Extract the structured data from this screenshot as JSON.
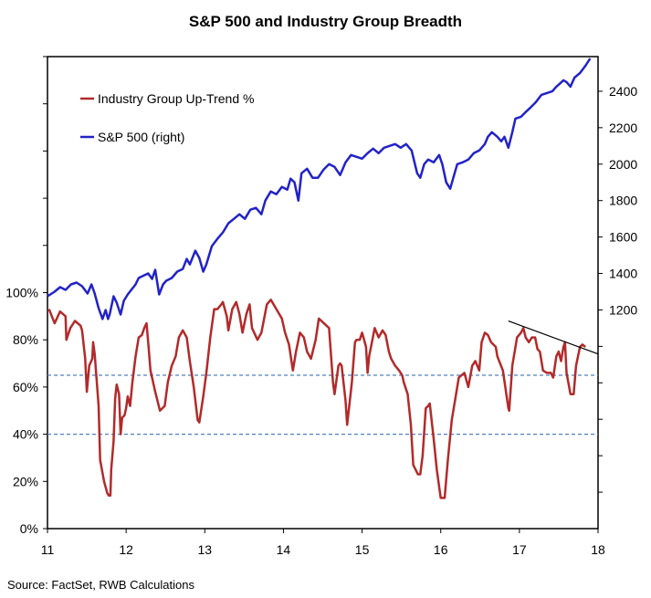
{
  "chart_data": {
    "type": "line",
    "title": "S&P 500 and Industry Group Breadth",
    "source": "Source: FactSet, RWB Calculations",
    "legend_position": "top-left",
    "grid": false,
    "x_ticks": [
      "11",
      "12",
      "13",
      "14",
      "15",
      "16",
      "17",
      "18"
    ],
    "xlim": [
      11,
      18
    ],
    "y_left": {
      "ylim": [
        0,
        200
      ],
      "ticks": [
        "0%",
        "20%",
        "40%",
        "60%",
        "80%",
        "100%"
      ],
      "tick_values": [
        0,
        20,
        40,
        60,
        80,
        100
      ],
      "minor_ticks": [
        120,
        140,
        160,
        180,
        200
      ]
    },
    "y_right": {
      "ylim": [
        0,
        2590
      ],
      "ticks": [
        "1200",
        "1400",
        "1600",
        "1800",
        "2000",
        "2200",
        "2400"
      ],
      "tick_values": [
        1200,
        1400,
        1600,
        1800,
        2000,
        2200,
        2400
      ],
      "minor_ticks": [
        200,
        400,
        600,
        800,
        1000
      ]
    },
    "reference_lines": [
      {
        "axis": "left",
        "value": 65,
        "style": "dashed",
        "color": "#4f81bd"
      },
      {
        "axis": "left",
        "value": 40,
        "style": "dashed",
        "color": "#4f81bd"
      }
    ],
    "trendline": {
      "axis": "left",
      "points": [
        [
          16.86,
          88
        ],
        [
          18.0,
          74
        ]
      ],
      "color": "#000000"
    },
    "series": [
      {
        "name": "Industry Group Up-Trend %",
        "axis": "left",
        "color": "#b22a2a",
        "points": [
          [
            11.02,
            93
          ],
          [
            11.09,
            87
          ],
          [
            11.16,
            92
          ],
          [
            11.23,
            90
          ],
          [
            11.24,
            80
          ],
          [
            11.29,
            85
          ],
          [
            11.35,
            88
          ],
          [
            11.42,
            86
          ],
          [
            11.44,
            84
          ],
          [
            11.48,
            72
          ],
          [
            11.5,
            58
          ],
          [
            11.53,
            69
          ],
          [
            11.57,
            72
          ],
          [
            11.58,
            79
          ],
          [
            11.6,
            74
          ],
          [
            11.65,
            52
          ],
          [
            11.67,
            29
          ],
          [
            11.72,
            20
          ],
          [
            11.76,
            15
          ],
          [
            11.78,
            14
          ],
          [
            11.8,
            14
          ],
          [
            11.81,
            25
          ],
          [
            11.84,
            37
          ],
          [
            11.86,
            55
          ],
          [
            11.88,
            61
          ],
          [
            11.91,
            57
          ],
          [
            11.93,
            40
          ],
          [
            11.95,
            47
          ],
          [
            11.98,
            48
          ],
          [
            12.0,
            51
          ],
          [
            12.02,
            56
          ],
          [
            12.05,
            52
          ],
          [
            12.08,
            62
          ],
          [
            12.12,
            73
          ],
          [
            12.16,
            81
          ],
          [
            12.2,
            82
          ],
          [
            12.23,
            85
          ],
          [
            12.26,
            87
          ],
          [
            12.28,
            79
          ],
          [
            12.31,
            67
          ],
          [
            12.37,
            58
          ],
          [
            12.43,
            50
          ],
          [
            12.49,
            52
          ],
          [
            12.53,
            62
          ],
          [
            12.58,
            69
          ],
          [
            12.63,
            73
          ],
          [
            12.67,
            81
          ],
          [
            12.72,
            84
          ],
          [
            12.77,
            81
          ],
          [
            12.81,
            71
          ],
          [
            12.86,
            60
          ],
          [
            12.91,
            46
          ],
          [
            12.93,
            45
          ],
          [
            12.98,
            56
          ],
          [
            13.02,
            66
          ],
          [
            13.07,
            81
          ],
          [
            13.12,
            93
          ],
          [
            13.16,
            93
          ],
          [
            13.21,
            95
          ],
          [
            13.23,
            96
          ],
          [
            13.28,
            90
          ],
          [
            13.3,
            84
          ],
          [
            13.35,
            93
          ],
          [
            13.4,
            96
          ],
          [
            13.44,
            91
          ],
          [
            13.48,
            83
          ],
          [
            13.53,
            91
          ],
          [
            13.57,
            95
          ],
          [
            13.6,
            85
          ],
          [
            13.67,
            80
          ],
          [
            13.72,
            83
          ],
          [
            13.79,
            95
          ],
          [
            13.84,
            97
          ],
          [
            13.91,
            93
          ],
          [
            13.98,
            89
          ],
          [
            14.02,
            83
          ],
          [
            14.07,
            78
          ],
          [
            14.12,
            67
          ],
          [
            14.16,
            75
          ],
          [
            14.21,
            83
          ],
          [
            14.26,
            81
          ],
          [
            14.3,
            75
          ],
          [
            14.35,
            72
          ],
          [
            14.41,
            80
          ],
          [
            14.45,
            89
          ],
          [
            14.58,
            85
          ],
          [
            14.63,
            62
          ],
          [
            14.65,
            57
          ],
          [
            14.7,
            69
          ],
          [
            14.72,
            70
          ],
          [
            14.74,
            69
          ],
          [
            14.79,
            54
          ],
          [
            14.81,
            44
          ],
          [
            14.87,
            62
          ],
          [
            14.91,
            79
          ],
          [
            14.93,
            80
          ],
          [
            14.97,
            80
          ],
          [
            15.0,
            83
          ],
          [
            15.05,
            77
          ],
          [
            15.07,
            66
          ],
          [
            15.09,
            73
          ],
          [
            15.16,
            85
          ],
          [
            15.21,
            81
          ],
          [
            15.26,
            84
          ],
          [
            15.3,
            82
          ],
          [
            15.34,
            75
          ],
          [
            15.37,
            72
          ],
          [
            15.42,
            69
          ],
          [
            15.47,
            67
          ],
          [
            15.51,
            65
          ],
          [
            15.53,
            62
          ],
          [
            15.58,
            57
          ],
          [
            15.62,
            44
          ],
          [
            15.65,
            27
          ],
          [
            15.71,
            23
          ],
          [
            15.74,
            23
          ],
          [
            15.77,
            31
          ],
          [
            15.81,
            51
          ],
          [
            15.84,
            52
          ],
          [
            15.86,
            53
          ],
          [
            15.91,
            38
          ],
          [
            15.95,
            25
          ],
          [
            16.0,
            13
          ],
          [
            16.05,
            13
          ],
          [
            16.09,
            29
          ],
          [
            16.14,
            46
          ],
          [
            16.19,
            56
          ],
          [
            16.23,
            64
          ],
          [
            16.3,
            66
          ],
          [
            16.35,
            60
          ],
          [
            16.4,
            69
          ],
          [
            16.44,
            71
          ],
          [
            16.49,
            67
          ],
          [
            16.52,
            79
          ],
          [
            16.56,
            83
          ],
          [
            16.6,
            82
          ],
          [
            16.64,
            79
          ],
          [
            16.7,
            77
          ],
          [
            16.72,
            73
          ],
          [
            16.79,
            67
          ],
          [
            16.86,
            51
          ],
          [
            16.87,
            50
          ],
          [
            16.91,
            69
          ],
          [
            16.97,
            81
          ],
          [
            17.02,
            83
          ],
          [
            17.05,
            85
          ],
          [
            17.08,
            81
          ],
          [
            17.12,
            79
          ],
          [
            17.16,
            81
          ],
          [
            17.2,
            81
          ],
          [
            17.23,
            76
          ],
          [
            17.26,
            75
          ],
          [
            17.3,
            67
          ],
          [
            17.35,
            66
          ],
          [
            17.4,
            66
          ],
          [
            17.43,
            64
          ],
          [
            17.47,
            73
          ],
          [
            17.5,
            75
          ],
          [
            17.53,
            71
          ],
          [
            17.56,
            77
          ],
          [
            17.58,
            79
          ],
          [
            17.6,
            66
          ],
          [
            17.65,
            57
          ],
          [
            17.69,
            57
          ],
          [
            17.72,
            69
          ],
          [
            17.77,
            77
          ],
          [
            17.8,
            78
          ],
          [
            17.84,
            77
          ]
        ]
      },
      {
        "name": "S&P 500 (right)",
        "axis": "right",
        "color": "#2222c8",
        "points": [
          [
            11.0,
            1275
          ],
          [
            11.09,
            1300
          ],
          [
            11.16,
            1325
          ],
          [
            11.23,
            1310
          ],
          [
            11.3,
            1340
          ],
          [
            11.37,
            1350
          ],
          [
            11.44,
            1330
          ],
          [
            11.51,
            1290
          ],
          [
            11.56,
            1340
          ],
          [
            11.6,
            1290
          ],
          [
            11.65,
            1210
          ],
          [
            11.7,
            1150
          ],
          [
            11.74,
            1200
          ],
          [
            11.77,
            1150
          ],
          [
            11.79,
            1175
          ],
          [
            11.84,
            1275
          ],
          [
            11.88,
            1240
          ],
          [
            11.93,
            1175
          ],
          [
            11.97,
            1250
          ],
          [
            12.02,
            1285
          ],
          [
            12.12,
            1340
          ],
          [
            12.16,
            1375
          ],
          [
            12.23,
            1390
          ],
          [
            12.28,
            1400
          ],
          [
            12.33,
            1370
          ],
          [
            12.37,
            1420
          ],
          [
            12.42,
            1285
          ],
          [
            12.47,
            1340
          ],
          [
            12.51,
            1360
          ],
          [
            12.58,
            1375
          ],
          [
            12.65,
            1410
          ],
          [
            12.72,
            1425
          ],
          [
            12.77,
            1480
          ],
          [
            12.81,
            1450
          ],
          [
            12.88,
            1525
          ],
          [
            12.93,
            1485
          ],
          [
            12.98,
            1410
          ],
          [
            13.02,
            1450
          ],
          [
            13.09,
            1550
          ],
          [
            13.16,
            1590
          ],
          [
            13.23,
            1625
          ],
          [
            13.3,
            1675
          ],
          [
            13.37,
            1700
          ],
          [
            13.44,
            1725
          ],
          [
            13.51,
            1700
          ],
          [
            13.58,
            1750
          ],
          [
            13.65,
            1760
          ],
          [
            13.72,
            1725
          ],
          [
            13.77,
            1800
          ],
          [
            13.84,
            1850
          ],
          [
            13.91,
            1835
          ],
          [
            13.98,
            1875
          ],
          [
            14.05,
            1860
          ],
          [
            14.09,
            1920
          ],
          [
            14.14,
            1900
          ],
          [
            14.19,
            1800
          ],
          [
            14.23,
            1950
          ],
          [
            14.3,
            1975
          ],
          [
            14.37,
            1925
          ],
          [
            14.44,
            1925
          ],
          [
            14.51,
            1970
          ],
          [
            14.58,
            2000
          ],
          [
            14.65,
            1985
          ],
          [
            14.72,
            1940
          ],
          [
            14.79,
            2010
          ],
          [
            14.86,
            2050
          ],
          [
            14.93,
            2040
          ],
          [
            15.0,
            2030
          ],
          [
            15.07,
            2060
          ],
          [
            15.14,
            2085
          ],
          [
            15.21,
            2060
          ],
          [
            15.28,
            2090
          ],
          [
            15.35,
            2100
          ],
          [
            15.42,
            2110
          ],
          [
            15.49,
            2090
          ],
          [
            15.56,
            2110
          ],
          [
            15.63,
            2075
          ],
          [
            15.7,
            1950
          ],
          [
            15.74,
            1925
          ],
          [
            15.79,
            2000
          ],
          [
            15.84,
            2025
          ],
          [
            15.91,
            2010
          ],
          [
            15.98,
            2050
          ],
          [
            16.02,
            2000
          ],
          [
            16.07,
            1900
          ],
          [
            16.12,
            1865
          ],
          [
            16.16,
            1925
          ],
          [
            16.21,
            2000
          ],
          [
            16.28,
            2010
          ],
          [
            16.35,
            2025
          ],
          [
            16.42,
            2060
          ],
          [
            16.49,
            2075
          ],
          [
            16.56,
            2110
          ],
          [
            16.6,
            2150
          ],
          [
            16.65,
            2175
          ],
          [
            16.72,
            2150
          ],
          [
            16.77,
            2125
          ],
          [
            16.81,
            2150
          ],
          [
            16.86,
            2090
          ],
          [
            16.91,
            2175
          ],
          [
            16.95,
            2250
          ],
          [
            17.02,
            2260
          ],
          [
            17.09,
            2290
          ],
          [
            17.14,
            2310
          ],
          [
            17.21,
            2340
          ],
          [
            17.28,
            2380
          ],
          [
            17.35,
            2390
          ],
          [
            17.42,
            2400
          ],
          [
            17.47,
            2425
          ],
          [
            17.51,
            2440
          ],
          [
            17.56,
            2460
          ],
          [
            17.6,
            2450
          ],
          [
            17.65,
            2425
          ],
          [
            17.7,
            2475
          ],
          [
            17.77,
            2500
          ],
          [
            17.84,
            2540
          ],
          [
            17.9,
            2580
          ]
        ]
      }
    ]
  }
}
